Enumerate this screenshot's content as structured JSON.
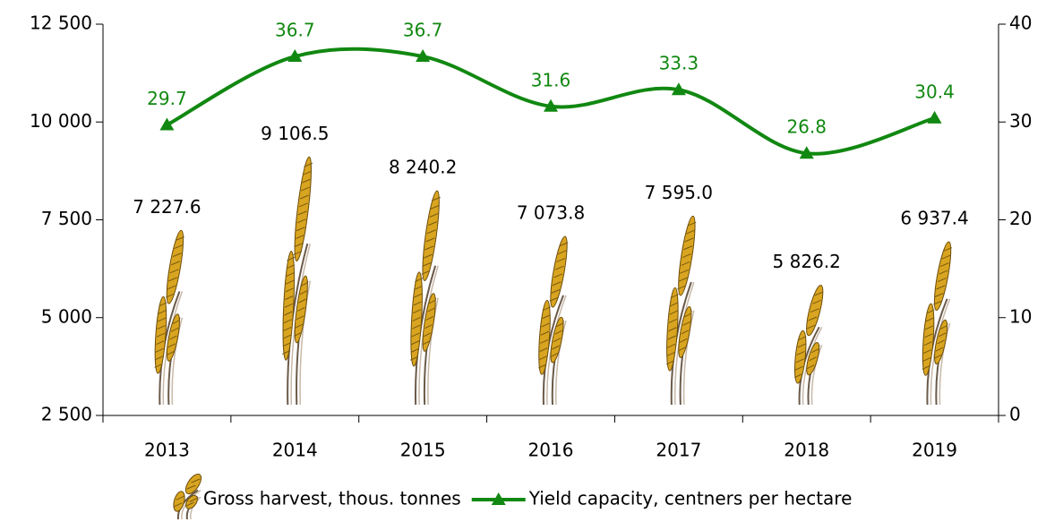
{
  "chart_data": {
    "type": "bar",
    "categories": [
      "2013",
      "2014",
      "2015",
      "2016",
      "2017",
      "2018",
      "2019"
    ],
    "series": [
      {
        "name": "Gross harvest, thous. tonnes",
        "type": "bar",
        "color": "#d9a520",
        "values": [
          7227.6,
          9106.5,
          8240.2,
          7073.8,
          7595.0,
          5826.2,
          6937.4
        ],
        "value_labels": [
          "7 227.6",
          "9 106.5",
          "8 240.2",
          "7 073.8",
          "7 595.0",
          "5 826.2",
          "6 937.4"
        ]
      },
      {
        "name": "Yield capacity, centners per hectare",
        "type": "line",
        "axis": "y2",
        "color": "#118811",
        "values": [
          29.7,
          36.7,
          36.7,
          31.6,
          33.3,
          26.8,
          30.4
        ]
      }
    ],
    "ylim": [
      2500,
      12500
    ],
    "yticks": [
      {
        "value": 2500,
        "label": "2 500"
      },
      {
        "value": 5000,
        "label": "5 000"
      },
      {
        "value": 7500,
        "label": "7 500"
      },
      {
        "value": 10000,
        "label": "10 000"
      },
      {
        "value": 12500,
        "label": "12 500"
      }
    ],
    "y2lim": [
      0,
      40
    ],
    "y2ticks": [
      0,
      10,
      20,
      30,
      40
    ],
    "legend": "bottom"
  }
}
